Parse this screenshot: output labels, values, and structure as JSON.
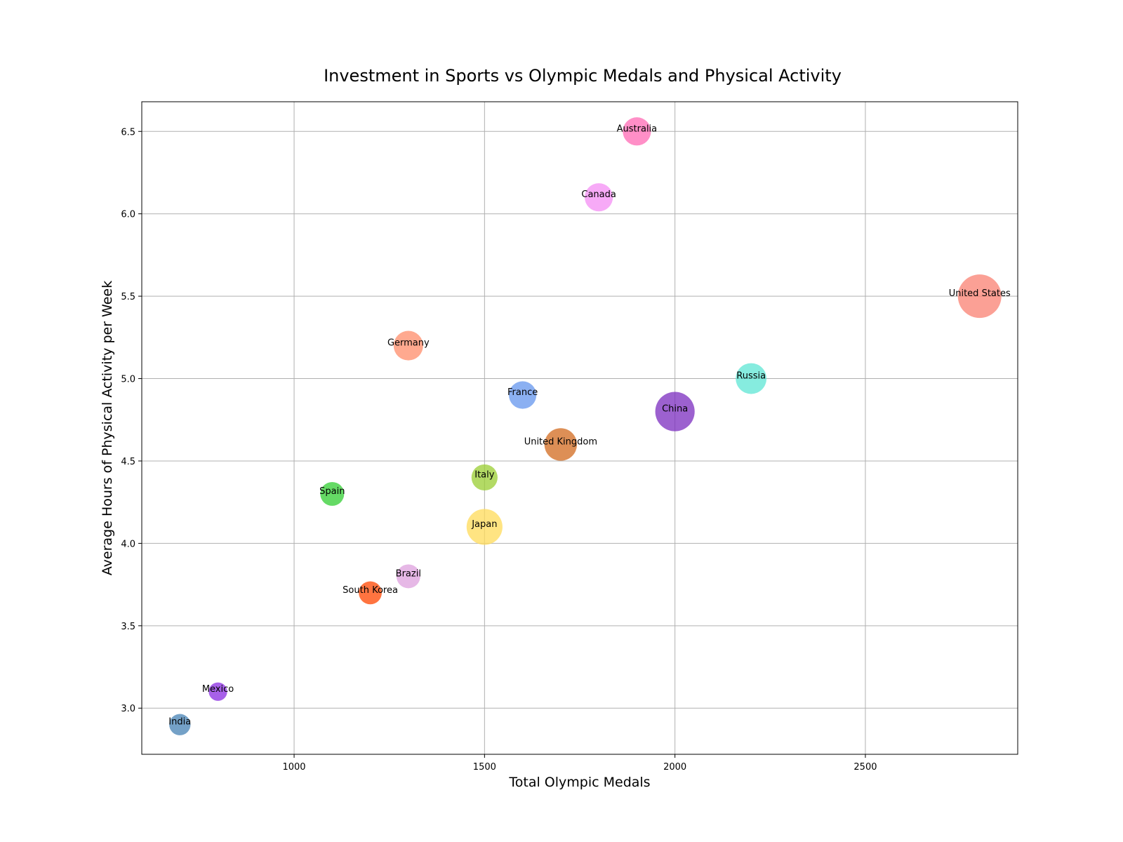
{
  "chart_data": {
    "type": "scatter",
    "title": "Investment in Sports vs Olympic Medals and Physical Activity",
    "xlabel": "Total Olympic Medals",
    "ylabel": "Average Hours of Physical Activity per Week",
    "xlim": [
      600,
      2900
    ],
    "ylim": [
      2.72,
      6.68
    ],
    "xticks": [
      1000,
      1500,
      2000,
      2500
    ],
    "yticks": [
      3.0,
      3.5,
      4.0,
      4.5,
      5.0,
      5.5,
      6.0,
      6.5
    ],
    "grid": true,
    "points": [
      {
        "label": "United States",
        "x": 2800,
        "y": 5.5,
        "size": 1.0,
        "color": "#fa8072"
      },
      {
        "label": "China",
        "x": 2000,
        "y": 4.8,
        "size": 0.82,
        "color": "#7b2cbf"
      },
      {
        "label": "Russia",
        "x": 2200,
        "y": 5.0,
        "size": 0.5,
        "color": "#5ee6d4"
      },
      {
        "label": "Germany",
        "x": 1300,
        "y": 5.2,
        "size": 0.46,
        "color": "#ff8c69"
      },
      {
        "label": "United Kingdom",
        "x": 1700,
        "y": 4.6,
        "size": 0.56,
        "color": "#d2691e"
      },
      {
        "label": "France",
        "x": 1600,
        "y": 4.9,
        "size": 0.4,
        "color": "#6495ed"
      },
      {
        "label": "Japan",
        "x": 1500,
        "y": 4.1,
        "size": 0.68,
        "color": "#ffdb58"
      },
      {
        "label": "Italy",
        "x": 1500,
        "y": 4.4,
        "size": 0.36,
        "color": "#9acd32"
      },
      {
        "label": "Australia",
        "x": 1900,
        "y": 6.5,
        "size": 0.42,
        "color": "#ff69b4"
      },
      {
        "label": "Canada",
        "x": 1800,
        "y": 6.1,
        "size": 0.42,
        "color": "#f48ef4"
      },
      {
        "label": "Spain",
        "x": 1100,
        "y": 4.3,
        "size": 0.3,
        "color": "#32cd32"
      },
      {
        "label": "Brazil",
        "x": 1300,
        "y": 3.8,
        "size": 0.3,
        "color": "#dda0dd"
      },
      {
        "label": "South Korea",
        "x": 1200,
        "y": 3.7,
        "size": 0.28,
        "color": "#ff4500"
      },
      {
        "label": "Mexico",
        "x": 800,
        "y": 3.1,
        "size": 0.18,
        "color": "#8a2be2"
      },
      {
        "label": "India",
        "x": 700,
        "y": 2.9,
        "size": 0.24,
        "color": "#4682b4"
      }
    ]
  }
}
